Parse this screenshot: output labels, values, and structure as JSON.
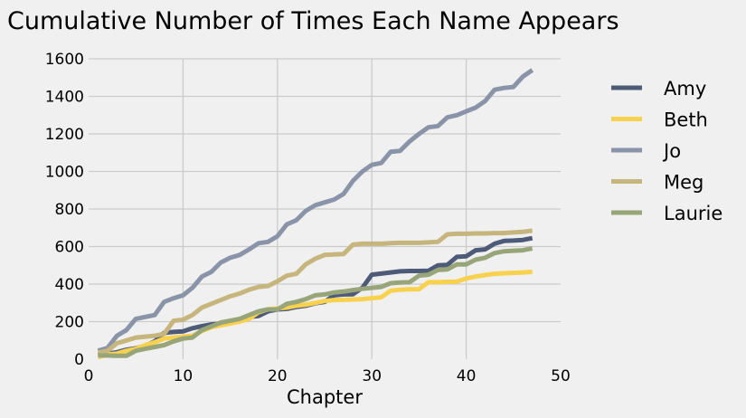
{
  "chart_data": {
    "type": "line",
    "title": "Cumulative Number of Times Each Name Appears",
    "xlabel": "Chapter",
    "ylabel": "",
    "xlim": [
      0,
      50
    ],
    "ylim": [
      0,
      1600
    ],
    "xticks": [
      "0",
      "10",
      "20",
      "30",
      "40",
      "50"
    ],
    "yticks": [
      "0",
      "200",
      "400",
      "600",
      "800",
      "1000",
      "1200",
      "1400",
      "1600"
    ],
    "grid": true,
    "legend_position": "right",
    "x": [
      1,
      2,
      3,
      4,
      5,
      6,
      7,
      8,
      9,
      10,
      11,
      12,
      13,
      14,
      15,
      16,
      17,
      18,
      19,
      20,
      21,
      22,
      23,
      24,
      25,
      26,
      27,
      28,
      29,
      30,
      31,
      32,
      33,
      34,
      35,
      36,
      37,
      38,
      39,
      40,
      41,
      42,
      43,
      44,
      45,
      46,
      47
    ],
    "series": [
      {
        "name": "Amy",
        "color": "#4e5b78",
        "values": [
          23,
          30,
          37,
          50,
          58,
          72,
          95,
          140,
          145,
          148,
          165,
          176,
          185,
          190,
          200,
          210,
          225,
          230,
          255,
          265,
          268,
          278,
          285,
          298,
          305,
          340,
          345,
          346,
          380,
          450,
          456,
          462,
          468,
          470,
          470,
          471,
          500,
          502,
          545,
          548,
          580,
          585,
          615,
          630,
          632,
          635,
          645
        ]
      },
      {
        "name": "Beth",
        "color": "#f8d14f",
        "values": [
          10,
          25,
          30,
          45,
          55,
          75,
          90,
          110,
          115,
          120,
          125,
          150,
          170,
          180,
          190,
          200,
          215,
          250,
          265,
          270,
          275,
          285,
          290,
          300,
          310,
          315,
          316,
          318,
          320,
          325,
          330,
          365,
          370,
          372,
          373,
          410,
          410,
          412,
          413,
          430,
          440,
          448,
          455,
          458,
          460,
          462,
          465
        ]
      },
      {
        "name": "Jo",
        "color": "#8a94a8",
        "values": [
          45,
          60,
          125,
          155,
          215,
          225,
          235,
          305,
          325,
          340,
          380,
          440,
          465,
          515,
          540,
          555,
          585,
          618,
          625,
          655,
          718,
          740,
          790,
          820,
          835,
          850,
          880,
          950,
          1000,
          1035,
          1045,
          1105,
          1110,
          1160,
          1200,
          1235,
          1242,
          1288,
          1300,
          1320,
          1340,
          1375,
          1435,
          1445,
          1450,
          1505,
          1540
        ]
      },
      {
        "name": "Meg",
        "color": "#c6b57c",
        "values": [
          35,
          45,
          85,
          100,
          115,
          120,
          125,
          135,
          205,
          210,
          235,
          275,
          295,
          315,
          335,
          350,
          370,
          385,
          390,
          415,
          445,
          455,
          505,
          535,
          555,
          558,
          560,
          610,
          615,
          615,
          615,
          618,
          620,
          620,
          620,
          622,
          625,
          665,
          668,
          668,
          670,
          670,
          672,
          672,
          675,
          678,
          685
        ]
      },
      {
        "name": "Laurie",
        "color": "#98a578",
        "values": [
          20,
          20,
          18,
          18,
          45,
          55,
          65,
          75,
          95,
          110,
          115,
          155,
          175,
          195,
          205,
          215,
          235,
          255,
          265,
          265,
          295,
          305,
          320,
          340,
          345,
          355,
          360,
          368,
          375,
          380,
          385,
          405,
          408,
          410,
          445,
          450,
          475,
          478,
          505,
          505,
          530,
          540,
          565,
          575,
          578,
          580,
          590
        ]
      }
    ]
  }
}
